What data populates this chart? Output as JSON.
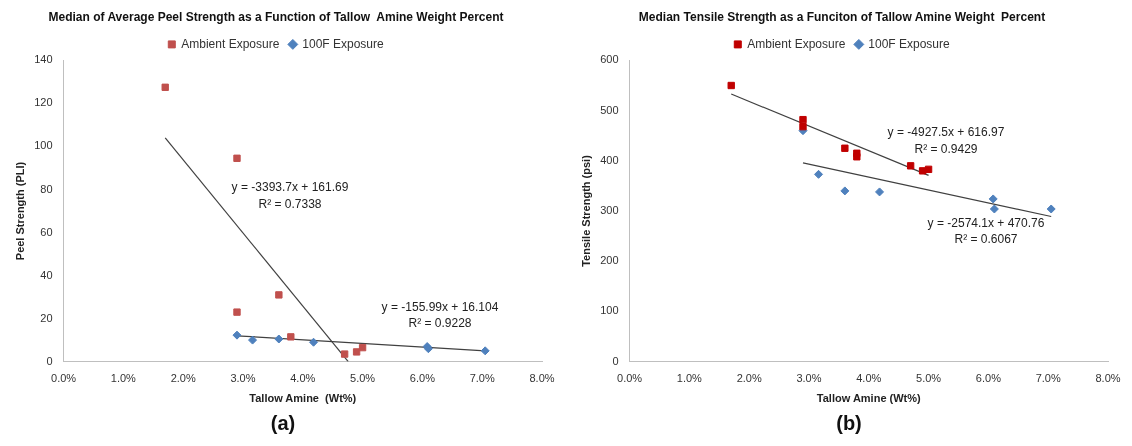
{
  "chart_data": [
    {
      "type": "scatter",
      "title": "Median of Average Peel Strength as a Function of Tallow  Amine Weight Percent",
      "xlabel": "Tallow Amine  (Wt%)",
      "ylabel": "Peel Strength (PLI)",
      "legend": "top",
      "grid": false,
      "xlim": [
        0,
        0.08
      ],
      "xticks": [
        {
          "value": 0,
          "label": "0.0%"
        },
        {
          "value": 0.01,
          "label": "1.0%"
        },
        {
          "value": 0.02,
          "label": "2.0%"
        },
        {
          "value": 0.03,
          "label": "3.0%"
        },
        {
          "value": 0.04,
          "label": "4.0%"
        },
        {
          "value": 0.05,
          "label": "5.0%"
        },
        {
          "value": 0.06,
          "label": "6.0%"
        },
        {
          "value": 0.07,
          "label": "7.0%"
        },
        {
          "value": 0.08,
          "label": "8.0%"
        }
      ],
      "ylim": [
        0,
        140
      ],
      "yticks": [
        0,
        20,
        40,
        60,
        80,
        100,
        120,
        140
      ],
      "series": [
        {
          "name": "Ambient Exposure",
          "color": "#c0504d",
          "marker": "square",
          "x": [
            0.017,
            0.029,
            0.029,
            0.036,
            0.038,
            0.047,
            0.049,
            0.05
          ],
          "values": [
            127.5,
            94.5,
            23,
            31,
            11.5,
            3.5,
            4.5,
            6.5
          ]
        },
        {
          "name": "100F Exposure",
          "color": "#4f81bd",
          "marker": "diamond",
          "x": [
            0.029,
            0.0316,
            0.036,
            0.0418,
            0.0608,
            0.061,
            0.0705
          ],
          "values": [
            12.3,
            10,
            10.5,
            9,
            7,
            6,
            5
          ]
        },
        {
          "type": "line",
          "color": "#404040",
          "marker": "none",
          "x": [
            0.017,
            0.0476
          ],
          "values": [
            104,
            0
          ]
        },
        {
          "type": "line",
          "color": "#404040",
          "marker": "none",
          "x": [
            0.029,
            0.0705
          ],
          "values": [
            12,
            5
          ]
        }
      ],
      "annotations": [
        "y = -3393.7x + 161.69",
        "R² = 0.7338",
        "y = -155.99x + 16.104",
        "R² = 0.9228",
        "(a)"
      ]
    },
    {
      "type": "scatter",
      "title": "Median Tensile Strength as a Funciton of Tallow Amine Weight  Percent",
      "xlabel": "Tallow Amine (Wt%)",
      "ylabel": "Tensile Strength (psi)",
      "legend": "top",
      "grid": false,
      "xlim": [
        0,
        0.08
      ],
      "xticks": [
        {
          "value": 0,
          "label": "0.0%"
        },
        {
          "value": 0.01,
          "label": "1.0%"
        },
        {
          "value": 0.02,
          "label": "2.0%"
        },
        {
          "value": 0.03,
          "label": "3.0%"
        },
        {
          "value": 0.04,
          "label": "4.0%"
        },
        {
          "value": 0.05,
          "label": "5.0%"
        },
        {
          "value": 0.06,
          "label": "6.0%"
        },
        {
          "value": 0.07,
          "label": "7.0%"
        },
        {
          "value": 0.08,
          "label": "8.0%"
        }
      ],
      "ylim": [
        0,
        600
      ],
      "yticks": [
        0,
        100,
        200,
        300,
        400,
        500,
        600
      ],
      "series": [
        {
          "name": "Ambient Exposure",
          "color": "#c00000",
          "marker": "square",
          "x": [
            0.017,
            0.029,
            0.029,
            0.036,
            0.038,
            0.038,
            0.047,
            0.049,
            0.05
          ],
          "values": [
            550,
            482,
            468,
            425,
            415,
            408,
            390,
            380,
            383
          ]
        },
        {
          "name": "100F Exposure",
          "color": "#4f81bd",
          "marker": "diamond",
          "x": [
            0.029,
            0.0316,
            0.036,
            0.0418,
            0.0608,
            0.061,
            0.0705
          ],
          "values": [
            460,
            373,
            340,
            338,
            324,
            304,
            304
          ]
        },
        {
          "type": "line",
          "color": "#404040",
          "marker": "none",
          "x": [
            0.017,
            0.05
          ],
          "values": [
            533,
            371
          ]
        },
        {
          "type": "line",
          "color": "#404040",
          "marker": "none",
          "x": [
            0.029,
            0.0705
          ],
          "values": [
            396,
            289
          ]
        }
      ],
      "annotations": [
        "y = -4927.5x + 616.97",
        "R² = 0.9429",
        "y = -2574.1x + 470.76",
        "R² = 0.6067",
        "(b)"
      ]
    }
  ]
}
